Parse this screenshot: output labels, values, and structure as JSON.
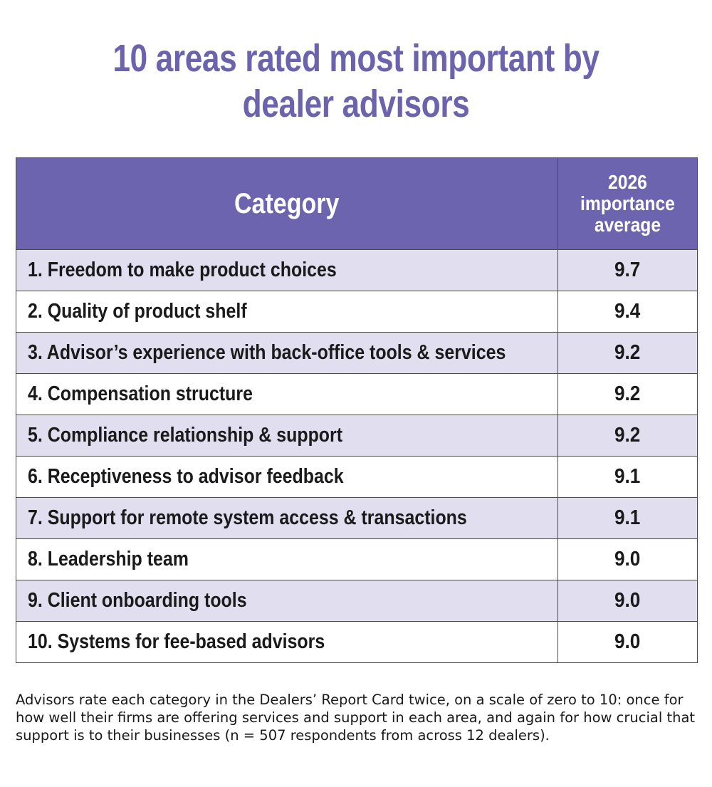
{
  "chart_data": {
    "type": "table",
    "title_lines": [
      "10 areas rated most important by",
      "dealer advisors"
    ],
    "columns": {
      "category": "Category",
      "value_lines": [
        "2026",
        "importance",
        "average"
      ]
    },
    "rows": [
      {
        "category": "1.  Freedom to make product choices",
        "value": "9.7"
      },
      {
        "category": "2. Quality of product shelf",
        "value": "9.4"
      },
      {
        "category": "3. Advisor’s experience with back-office tools & services",
        "value": "9.2"
      },
      {
        "category": "4. Compensation structure",
        "value": "9.2"
      },
      {
        "category": "5. Compliance relationship & support",
        "value": "9.2"
      },
      {
        "category": "6. Receptiveness to advisor feedback",
        "value": "9.1"
      },
      {
        "category": "7. Support for remote system access & transactions",
        "value": "9.1"
      },
      {
        "category": "8. Leadership team",
        "value": "9.0"
      },
      {
        "category": "9. Client onboarding tools",
        "value": "9.0"
      },
      {
        "category": "10. Systems for fee-based advisors",
        "value": "9.0"
      }
    ],
    "footnote": "Advisors rate each category in the Dealers’ Report Card twice, on a scale of zero to 10: once for how well their firms are offering services and support in each area, and again for how crucial that support is to their businesses (n = 507 respondents from across 12 dealers).",
    "colors": {
      "title": "#6b63ad",
      "header_bg": "#6c64ae",
      "stripe_bg": "#e1def0"
    }
  }
}
